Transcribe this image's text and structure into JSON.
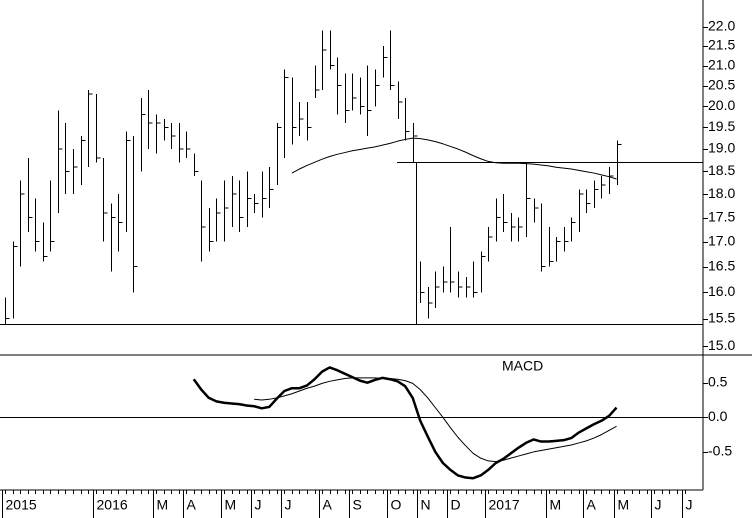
{
  "chart_data": [
    {
      "type": "ohlc",
      "log_scale": true,
      "color": "#000000",
      "categories": [
        "2015",
        null,
        null,
        null,
        null,
        null,
        null,
        null,
        null,
        null,
        null,
        null,
        "2016",
        null,
        null,
        null,
        null,
        null,
        null,
        null,
        "M",
        null,
        null,
        null,
        "A",
        null,
        null,
        null,
        null,
        "M",
        null,
        null,
        null,
        "J",
        null,
        null,
        null,
        "J",
        null,
        null,
        null,
        null,
        "A",
        null,
        null,
        null,
        "S",
        null,
        null,
        null,
        null,
        "O",
        null,
        null,
        null,
        "N",
        null,
        null,
        null,
        "D",
        null,
        null,
        null,
        null,
        "2017",
        null,
        null,
        null,
        null,
        null,
        null,
        null,
        "M",
        null,
        null,
        null,
        null,
        "A",
        null,
        null,
        null,
        "M",
        null,
        null,
        null,
        null,
        "J",
        null,
        null,
        null,
        "J"
      ],
      "high": [
        15.9,
        17.0,
        18.3,
        18.8,
        17.9,
        17.4,
        18.3,
        19.9,
        19.6,
        19.0,
        19.3,
        20.4,
        20.3,
        18.8,
        17.8,
        18.0,
        19.4,
        19.3,
        20.2,
        20.4,
        19.8,
        19.7,
        19.6,
        19.6,
        19.4,
        18.9,
        18.3,
        17.7,
        17.9,
        18.3,
        18.4,
        18.3,
        18.5,
        18.0,
        18.5,
        18.6,
        19.6,
        20.9,
        20.7,
        20.1,
        20.1,
        21.0,
        21.9,
        21.9,
        21.2,
        20.8,
        20.8,
        20.7,
        21.0,
        20.9,
        21.5,
        21.9,
        20.6,
        20.2,
        19.6,
        16.6,
        16.1,
        16.4,
        16.5,
        17.3,
        16.4,
        16.3,
        16.6,
        16.8,
        17.3,
        17.9,
        18.0,
        17.6,
        17.5,
        18.7,
        17.9,
        17.8,
        17.3,
        17.1,
        17.3,
        17.5,
        18.1,
        18.1,
        18.3,
        18.4,
        18.6,
        19.2,
        null,
        null,
        null,
        null,
        null,
        null,
        null,
        null,
        null
      ],
      "low": [
        15.4,
        15.5,
        16.5,
        17.2,
        16.8,
        16.6,
        16.8,
        17.6,
        18.0,
        18.0,
        18.2,
        18.6,
        18.7,
        17.0,
        16.4,
        16.8,
        17.2,
        16.0,
        18.5,
        19.0,
        18.9,
        19.2,
        19.0,
        18.7,
        18.8,
        18.4,
        16.6,
        16.8,
        17.0,
        17.0,
        17.3,
        17.2,
        17.3,
        17.6,
        17.5,
        17.7,
        18.2,
        18.8,
        19.1,
        19.3,
        19.2,
        20.2,
        20.4,
        20.9,
        19.8,
        19.6,
        19.9,
        19.8,
        19.3,
        20.0,
        20.7,
        20.4,
        19.7,
        19.2,
        18.7,
        15.8,
        15.5,
        15.7,
        16.0,
        16.0,
        15.9,
        15.9,
        15.9,
        16.0,
        16.6,
        17.0,
        17.2,
        17.0,
        17.0,
        17.1,
        17.4,
        16.4,
        16.5,
        16.6,
        16.8,
        17.0,
        17.2,
        17.6,
        17.7,
        17.9,
        18.0,
        18.2,
        null,
        null,
        null,
        null,
        null,
        null,
        null,
        null,
        null
      ],
      "close": [
        15.5,
        16.9,
        18.0,
        17.5,
        17.0,
        16.7,
        17.0,
        19.0,
        18.5,
        18.6,
        19.2,
        20.3,
        18.8,
        17.6,
        17.5,
        17.4,
        19.2,
        16.5,
        19.8,
        19.6,
        19.6,
        19.5,
        19.3,
        19.0,
        19.0,
        18.5,
        17.3,
        17.0,
        17.6,
        17.7,
        18.0,
        17.5,
        17.9,
        17.8,
        17.9,
        18.1,
        19.5,
        20.7,
        19.5,
        19.7,
        19.5,
        20.4,
        21.4,
        21.0,
        20.5,
        19.9,
        20.2,
        20.0,
        19.9,
        20.5,
        21.2,
        20.5,
        20.1,
        19.4,
        19.3,
        16.0,
        15.8,
        16.1,
        16.2,
        16.2,
        16.1,
        16.1,
        16.0,
        16.7,
        17.1,
        17.5,
        17.4,
        17.3,
        17.3,
        17.9,
        17.7,
        16.5,
        16.6,
        17.0,
        17.0,
        17.4,
        18.0,
        17.8,
        18.1,
        18.2,
        18.4,
        19.1,
        null,
        null,
        null,
        null,
        null,
        null,
        null,
        null,
        null
      ],
      "moving_average": [
        null,
        null,
        null,
        null,
        null,
        null,
        null,
        null,
        null,
        null,
        null,
        null,
        null,
        null,
        null,
        null,
        null,
        null,
        null,
        null,
        null,
        null,
        null,
        null,
        null,
        null,
        null,
        null,
        null,
        null,
        null,
        null,
        null,
        null,
        null,
        null,
        null,
        null,
        18.46,
        18.55,
        18.63,
        18.7,
        18.77,
        18.83,
        18.88,
        18.92,
        18.96,
        18.99,
        19.02,
        19.05,
        19.09,
        19.13,
        19.18,
        19.22,
        19.25,
        19.24,
        19.21,
        19.17,
        19.12,
        19.06,
        19.0,
        18.93,
        18.85,
        18.78,
        18.72,
        18.69,
        18.68,
        18.68,
        18.68,
        18.67,
        18.66,
        18.64,
        18.62,
        18.59,
        18.57,
        18.55,
        18.52,
        18.49,
        18.46,
        18.42,
        18.38,
        18.33,
        null,
        null,
        null,
        null,
        null,
        null,
        null,
        null,
        null
      ],
      "ylim": [
        14.84,
        22.72
      ],
      "yticks": [
        {
          "value": 15,
          "label": "15.0"
        },
        15.5,
        {
          "value": 16,
          "label": "16.0"
        },
        16.5,
        {
          "value": 17,
          "label": "17.0"
        },
        17.5,
        {
          "value": 18,
          "label": "18.0"
        },
        18.5,
        {
          "value": 19,
          "label": "19.0"
        },
        19.5,
        {
          "value": 20,
          "label": "20.0"
        },
        20.5,
        {
          "value": 21,
          "label": "21.0"
        },
        21.5,
        {
          "value": 22,
          "label": "22.0"
        }
      ],
      "hlines": [
        15.4,
        18.7
      ]
    },
    {
      "type": "line",
      "annotation": "MACD",
      "color": "#000000",
      "series": [
        {
          "line_width": 2.5,
          "values": [
            null,
            null,
            null,
            null,
            null,
            null,
            null,
            null,
            null,
            null,
            null,
            null,
            null,
            null,
            null,
            null,
            null,
            null,
            null,
            null,
            null,
            null,
            null,
            null,
            null,
            0.55,
            0.4,
            0.28,
            0.23,
            0.21,
            0.2,
            0.19,
            0.17,
            0.16,
            0.13,
            0.15,
            0.27,
            0.38,
            0.42,
            0.42,
            0.46,
            0.55,
            0.66,
            0.72,
            0.68,
            0.63,
            0.58,
            0.53,
            0.5,
            0.54,
            0.57,
            0.55,
            0.52,
            0.45,
            0.28,
            -0.05,
            -0.28,
            -0.5,
            -0.66,
            -0.76,
            -0.84,
            -0.87,
            -0.88,
            -0.84,
            -0.76,
            -0.66,
            -0.6,
            -0.52,
            -0.44,
            -0.37,
            -0.32,
            -0.35,
            -0.35,
            -0.34,
            -0.33,
            -0.3,
            -0.22,
            -0.16,
            -0.1,
            -0.05,
            0.02,
            0.14,
            null,
            null,
            null,
            null,
            null,
            null,
            null,
            null,
            null
          ]
        },
        {
          "line_width": 1,
          "values": [
            null,
            null,
            null,
            null,
            null,
            null,
            null,
            null,
            null,
            null,
            null,
            null,
            null,
            null,
            null,
            null,
            null,
            null,
            null,
            null,
            null,
            null,
            null,
            null,
            null,
            null,
            null,
            null,
            null,
            null,
            null,
            null,
            null,
            0.26,
            0.25,
            0.26,
            0.28,
            0.31,
            0.34,
            0.38,
            0.42,
            0.45,
            0.49,
            0.52,
            0.54,
            0.56,
            0.57,
            0.57,
            0.57,
            0.57,
            0.56,
            0.56,
            0.55,
            0.53,
            0.49,
            0.4,
            0.28,
            0.14,
            0.0,
            -0.15,
            -0.29,
            -0.41,
            -0.52,
            -0.59,
            -0.63,
            -0.64,
            -0.62,
            -0.59,
            -0.56,
            -0.53,
            -0.5,
            -0.48,
            -0.46,
            -0.44,
            -0.42,
            -0.4,
            -0.37,
            -0.34,
            -0.3,
            -0.25,
            -0.19,
            -0.13,
            null,
            null,
            null,
            null,
            null,
            null,
            null,
            null,
            null
          ]
        }
      ],
      "ylim": [
        -1.05,
        0.9
      ],
      "yticks": [
        0.5,
        {
          "value": 0,
          "label": "0.0"
        },
        -0.5
      ],
      "hlines": [
        0
      ]
    }
  ]
}
